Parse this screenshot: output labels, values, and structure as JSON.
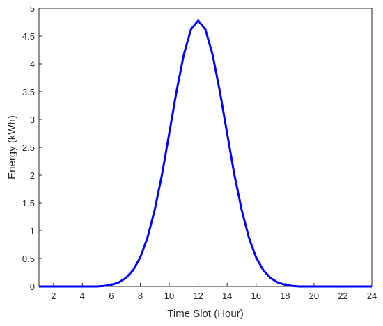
{
  "chart_data": {
    "type": "line",
    "xlabel": "Time Slot (Hour)",
    "ylabel": "Energy (kWh)",
    "x": [
      1,
      1.5,
      2,
      2.5,
      3,
      3.5,
      4,
      4.5,
      5,
      5.5,
      6,
      6.5,
      7,
      7.5,
      8,
      8.5,
      9,
      9.5,
      10,
      10.5,
      11,
      11.5,
      12,
      12.5,
      13,
      13.5,
      14,
      14.5,
      15,
      15.5,
      16,
      16.5,
      17,
      17.5,
      18,
      18.5,
      19,
      19.5,
      20,
      20.5,
      21,
      21.5,
      22,
      22.5,
      23,
      23.5,
      24
    ],
    "series": [
      {
        "color": "#0000ff",
        "values": [
          0,
          0,
          0,
          0,
          0,
          0,
          0,
          0,
          0,
          0.01,
          0.03,
          0.07,
          0.15,
          0.29,
          0.52,
          0.88,
          1.38,
          2.01,
          2.75,
          3.5,
          4.16,
          4.62,
          4.78,
          4.62,
          4.16,
          3.5,
          2.75,
          2.01,
          1.38,
          0.88,
          0.52,
          0.29,
          0.15,
          0.07,
          0.03,
          0.01,
          0,
          0,
          0,
          0,
          0,
          0,
          0,
          0,
          0,
          0,
          0
        ]
      }
    ],
    "xlim": [
      1,
      24
    ],
    "xticks": [
      2,
      4,
      6,
      8,
      10,
      12,
      14,
      16,
      18,
      20,
      22,
      24
    ],
    "ylim": [
      0,
      5
    ],
    "yticks": [
      0,
      0.5,
      1,
      1.5,
      2,
      2.5,
      3,
      3.5,
      4,
      4.5,
      5
    ]
  }
}
